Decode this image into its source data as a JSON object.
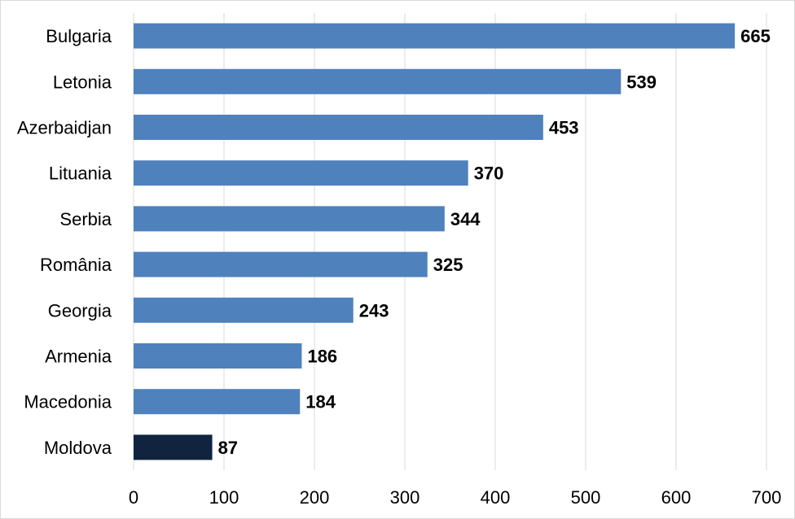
{
  "chart_data": {
    "type": "bar",
    "orientation": "horizontal",
    "categories": [
      "Bulgaria",
      "Letonia",
      "Azerbaidjan",
      "Lituania",
      "Serbia",
      "România",
      "Georgia",
      "Armenia",
      "Macedonia",
      "Moldova"
    ],
    "values": [
      665,
      539,
      453,
      370,
      344,
      325,
      243,
      186,
      184,
      87
    ],
    "highlight": "Moldova",
    "xlim": [
      0,
      700
    ],
    "xticks": [
      0,
      100,
      200,
      300,
      400,
      500,
      600,
      700
    ],
    "grid": "vertical",
    "colors": {
      "bar": "#4f81bd",
      "highlight": "#10243f",
      "grid": "#d9d9d9"
    }
  }
}
